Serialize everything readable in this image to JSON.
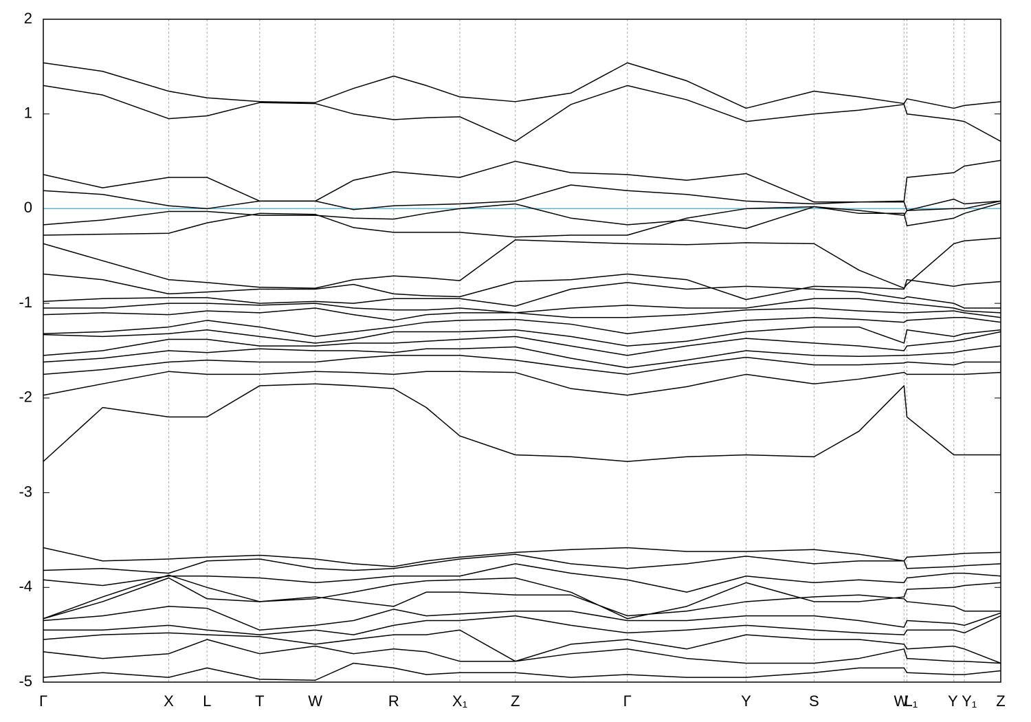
{
  "chart_data": {
    "type": "line",
    "x": [
      0,
      0.62,
      1.31,
      1.71,
      2.26,
      2.84,
      3.24,
      3.66,
      4.0,
      4.35,
      4.93,
      5.51,
      6.1,
      6.72,
      7.34,
      8.05,
      8.52,
      8.99,
      9.02,
      9.51,
      9.62,
      10.0
    ],
    "xlim": [
      0,
      10.0
    ],
    "xticks": [
      {
        "value": 0,
        "label": "Γ"
      },
      {
        "value": 1.31,
        "label": "X"
      },
      {
        "value": 1.71,
        "label": "L"
      },
      {
        "value": 2.26,
        "label": "T"
      },
      {
        "value": 2.84,
        "label": "W"
      },
      {
        "value": 3.66,
        "label": "R"
      },
      {
        "value": 4.35,
        "label": "X₁"
      },
      {
        "value": 4.93,
        "label": "Z"
      },
      {
        "value": 6.1,
        "label": "Γ"
      },
      {
        "value": 7.34,
        "label": "Y"
      },
      {
        "value": 8.05,
        "label": "S"
      },
      {
        "value": 8.99,
        "label": "W"
      },
      {
        "value": 9.02,
        "label": "L₁"
      },
      {
        "value": 9.51,
        "label": "Y"
      },
      {
        "value": 9.62,
        "label": "Y₁"
      },
      {
        "value": 10.0,
        "label": "Z"
      }
    ],
    "ylim": [
      -5,
      2
    ],
    "yticks": [
      2,
      1,
      0,
      -1,
      -2,
      -3,
      -4,
      -5
    ],
    "grid": true,
    "line_color": "#000000",
    "fermi_level": 0,
    "fermi_color": "#5bb5cc",
    "series": [
      {
        "values": [
          1.54,
          1.45,
          1.24,
          1.17,
          1.13,
          1.12,
          1.27,
          1.4,
          1.3,
          1.18,
          1.13,
          1.22,
          1.54,
          1.35,
          1.06,
          1.24,
          1.18,
          1.11,
          1.16,
          1.06,
          1.09,
          1.13
        ]
      },
      {
        "values": [
          1.3,
          1.2,
          0.95,
          0.98,
          1.12,
          1.11,
          1.0,
          0.94,
          0.96,
          0.97,
          0.71,
          1.1,
          1.3,
          1.15,
          0.92,
          1.0,
          1.04,
          1.1,
          1.0,
          0.94,
          0.92,
          0.71
        ]
      },
      {
        "values": [
          0.36,
          0.22,
          0.33,
          0.33,
          0.08,
          0.08,
          0.3,
          0.39,
          0.36,
          0.33,
          0.5,
          0.38,
          0.36,
          0.3,
          0.37,
          0.07,
          0.07,
          0.08,
          0.33,
          0.38,
          0.45,
          0.51
        ]
      },
      {
        "values": [
          0.19,
          0.15,
          0.03,
          0.0,
          0.08,
          0.08,
          -0.01,
          0.03,
          0.04,
          0.05,
          0.08,
          0.25,
          0.19,
          0.15,
          0.08,
          0.05,
          0.07,
          0.07,
          -0.02,
          0.1,
          0.05,
          0.08
        ]
      },
      {
        "values": [
          -0.17,
          -0.12,
          -0.03,
          -0.03,
          -0.07,
          -0.07,
          -0.1,
          -0.11,
          -0.05,
          0.0,
          0.05,
          -0.1,
          -0.17,
          -0.12,
          -0.21,
          0.02,
          -0.02,
          -0.07,
          -0.02,
          0.0,
          0.0,
          0.08
        ]
      },
      {
        "values": [
          -0.28,
          -0.27,
          -0.26,
          -0.15,
          -0.05,
          -0.06,
          -0.2,
          -0.25,
          -0.25,
          -0.25,
          -0.3,
          -0.28,
          -0.28,
          -0.1,
          0.0,
          0.02,
          -0.05,
          -0.05,
          -0.18,
          -0.1,
          -0.05,
          0.06
        ]
      },
      {
        "values": [
          -0.37,
          -0.55,
          -0.75,
          -0.78,
          -0.83,
          -0.84,
          -0.75,
          -0.71,
          -0.73,
          -0.76,
          -0.33,
          -0.35,
          -0.37,
          -0.38,
          -0.36,
          -0.37,
          -0.65,
          -0.84,
          -0.8,
          -0.37,
          -0.34,
          -0.31
        ]
      },
      {
        "values": [
          -0.69,
          -0.75,
          -0.9,
          -0.88,
          -0.85,
          -0.85,
          -0.8,
          -0.9,
          -0.92,
          -0.93,
          -0.77,
          -0.75,
          -0.69,
          -0.75,
          -0.96,
          -0.82,
          -0.83,
          -0.85,
          -0.75,
          -0.82,
          -0.8,
          -0.77
        ]
      },
      {
        "values": [
          -0.98,
          -0.95,
          -0.94,
          -0.94,
          -1.0,
          -0.98,
          -1.0,
          -0.95,
          -0.95,
          -0.95,
          -1.03,
          -0.85,
          -0.78,
          -0.85,
          -0.82,
          -0.85,
          -0.88,
          -0.95,
          -0.93,
          -1.0,
          -1.05,
          -1.05
        ]
      },
      {
        "values": [
          -1.05,
          -1.05,
          -1.0,
          -1.0,
          -1.02,
          -1.0,
          -1.05,
          -1.07,
          -1.07,
          -1.05,
          -1.1,
          -1.05,
          -1.02,
          -1.05,
          -1.05,
          -0.95,
          -0.95,
          -1.0,
          -1.0,
          -1.05,
          -1.08,
          -1.1
        ]
      },
      {
        "values": [
          -1.12,
          -1.1,
          -1.12,
          -1.08,
          -1.1,
          -1.05,
          -1.12,
          -1.18,
          -1.12,
          -1.1,
          -1.1,
          -1.15,
          -1.15,
          -1.12,
          -1.07,
          -1.05,
          -1.08,
          -1.1,
          -1.1,
          -1.08,
          -1.1,
          -1.15
        ]
      },
      {
        "values": [
          -1.32,
          -1.3,
          -1.25,
          -1.18,
          -1.25,
          -1.35,
          -1.3,
          -1.25,
          -1.2,
          -1.18,
          -1.17,
          -1.22,
          -1.32,
          -1.25,
          -1.18,
          -1.15,
          -1.17,
          -1.2,
          -1.18,
          -1.15,
          -1.15,
          -1.2
        ]
      },
      {
        "values": [
          -1.33,
          -1.35,
          -1.32,
          -1.28,
          -1.35,
          -1.42,
          -1.38,
          -1.3,
          -1.3,
          -1.3,
          -1.28,
          -1.35,
          -1.45,
          -1.4,
          -1.3,
          -1.25,
          -1.25,
          -1.42,
          -1.28,
          -1.35,
          -1.32,
          -1.28
        ]
      },
      {
        "values": [
          -1.55,
          -1.5,
          -1.38,
          -1.38,
          -1.45,
          -1.45,
          -1.42,
          -1.42,
          -1.4,
          -1.38,
          -1.35,
          -1.45,
          -1.55,
          -1.45,
          -1.37,
          -1.42,
          -1.45,
          -1.5,
          -1.45,
          -1.4,
          -1.38,
          -1.3
        ]
      },
      {
        "values": [
          -1.62,
          -1.58,
          -1.5,
          -1.52,
          -1.48,
          -1.5,
          -1.5,
          -1.52,
          -1.48,
          -1.48,
          -1.46,
          -1.58,
          -1.68,
          -1.6,
          -1.5,
          -1.55,
          -1.56,
          -1.55,
          -1.55,
          -1.52,
          -1.5,
          -1.45
        ]
      },
      {
        "values": [
          -1.75,
          -1.7,
          -1.62,
          -1.6,
          -1.62,
          -1.62,
          -1.58,
          -1.55,
          -1.55,
          -1.55,
          -1.6,
          -1.68,
          -1.75,
          -1.65,
          -1.57,
          -1.65,
          -1.65,
          -1.63,
          -1.62,
          -1.65,
          -1.62,
          -1.62
        ]
      },
      {
        "values": [
          -1.97,
          -1.85,
          -1.72,
          -1.75,
          -1.75,
          -1.72,
          -1.73,
          -1.75,
          -1.72,
          -1.72,
          -1.73,
          -1.9,
          -1.97,
          -1.88,
          -1.75,
          -1.85,
          -1.8,
          -1.73,
          -1.75,
          -1.75,
          -1.75,
          -1.73
        ]
      },
      {
        "values": [
          -2.67,
          -2.1,
          -2.2,
          -2.2,
          -1.87,
          -1.85,
          -1.87,
          -1.9,
          -2.1,
          -2.4,
          -2.6,
          -2.62,
          -2.67,
          -2.62,
          -2.6,
          -2.62,
          -2.35,
          -1.87,
          -2.2,
          -2.6,
          -2.6,
          -2.6
        ]
      },
      {
        "values": [
          -3.58,
          -3.72,
          -3.7,
          -3.68,
          -3.66,
          -3.7,
          -3.75,
          -3.78,
          -3.72,
          -3.68,
          -3.63,
          -3.6,
          -3.58,
          -3.62,
          -3.62,
          -3.6,
          -3.65,
          -3.72,
          -3.68,
          -3.65,
          -3.64,
          -3.63
        ]
      },
      {
        "values": [
          -3.82,
          -3.8,
          -3.85,
          -3.72,
          -3.7,
          -3.8,
          -3.82,
          -3.8,
          -3.75,
          -3.7,
          -3.65,
          -3.75,
          -3.8,
          -3.75,
          -3.67,
          -3.75,
          -3.72,
          -3.72,
          -3.8,
          -3.78,
          -3.77,
          -3.75
        ]
      },
      {
        "values": [
          -3.92,
          -3.98,
          -3.88,
          -3.88,
          -3.9,
          -3.95,
          -3.92,
          -3.88,
          -3.88,
          -3.88,
          -3.75,
          -3.85,
          -3.92,
          -4.05,
          -3.88,
          -3.95,
          -3.92,
          -3.95,
          -3.9,
          -3.85,
          -3.85,
          -3.88
        ]
      },
      {
        "values": [
          -4.33,
          -4.1,
          -3.87,
          -4.0,
          -4.15,
          -4.12,
          -4.05,
          -3.97,
          -3.93,
          -3.92,
          -3.9,
          -4.05,
          -4.33,
          -4.2,
          -3.95,
          -4.15,
          -4.15,
          -4.1,
          -4.02,
          -4.0,
          -3.98,
          -3.95
        ]
      },
      {
        "values": [
          -4.33,
          -4.15,
          -3.9,
          -4.12,
          -4.15,
          -4.1,
          -4.15,
          -4.2,
          -4.05,
          -4.05,
          -4.08,
          -4.08,
          -4.3,
          -4.25,
          -4.15,
          -4.1,
          -4.08,
          -4.12,
          -4.15,
          -4.2,
          -4.25,
          -4.25
        ]
      },
      {
        "values": [
          -4.35,
          -4.3,
          -4.2,
          -4.22,
          -4.45,
          -4.4,
          -4.35,
          -4.23,
          -4.3,
          -4.28,
          -4.25,
          -4.25,
          -4.35,
          -4.35,
          -4.3,
          -4.3,
          -4.35,
          -4.42,
          -4.35,
          -4.38,
          -4.4,
          -4.27
        ]
      },
      {
        "values": [
          -4.45,
          -4.45,
          -4.4,
          -4.45,
          -4.5,
          -4.45,
          -4.5,
          -4.4,
          -4.35,
          -4.35,
          -4.3,
          -4.4,
          -4.48,
          -4.45,
          -4.4,
          -4.45,
          -4.48,
          -4.5,
          -4.45,
          -4.45,
          -4.48,
          -4.3
        ]
      },
      {
        "values": [
          -4.55,
          -4.5,
          -4.48,
          -4.5,
          -4.52,
          -4.6,
          -4.55,
          -4.5,
          -4.5,
          -4.45,
          -4.78,
          -4.6,
          -4.55,
          -4.65,
          -4.5,
          -4.55,
          -4.55,
          -4.6,
          -4.65,
          -4.62,
          -4.65,
          -4.8
        ]
      },
      {
        "values": [
          -4.68,
          -4.75,
          -4.7,
          -4.55,
          -4.7,
          -4.62,
          -4.7,
          -4.65,
          -4.68,
          -4.78,
          -4.78,
          -4.7,
          -4.65,
          -4.75,
          -4.8,
          -4.8,
          -4.75,
          -4.65,
          -4.75,
          -4.78,
          -4.78,
          -4.8
        ]
      },
      {
        "values": [
          -4.95,
          -4.9,
          -4.95,
          -4.85,
          -4.97,
          -4.98,
          -4.8,
          -4.85,
          -4.92,
          -4.9,
          -4.9,
          -4.95,
          -4.92,
          -4.95,
          -4.95,
          -4.9,
          -4.85,
          -4.85,
          -4.9,
          -4.92,
          -4.92,
          -4.88
        ]
      }
    ]
  }
}
